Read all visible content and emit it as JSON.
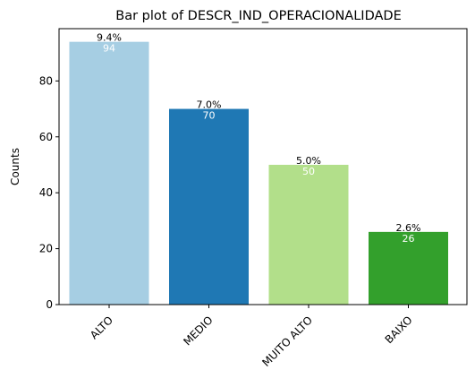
{
  "chart_data": {
    "type": "bar",
    "title": "Bar plot of DESCR_IND_OPERACIONALIDADE",
    "xlabel": "",
    "ylabel": "Counts",
    "categories": [
      "ALTO",
      "MEDIO",
      "MUITO ALTO",
      "BAIXO"
    ],
    "values": [
      94,
      70,
      50,
      26
    ],
    "percent_labels": [
      "9.4%",
      "7.0%",
      "5.0%",
      "2.6%"
    ],
    "value_labels": [
      "94",
      "70",
      "50",
      "26"
    ],
    "colors": [
      "#a6cee3",
      "#1f78b4",
      "#b2df8a",
      "#33a02c"
    ],
    "yticks": [
      0,
      20,
      40,
      60,
      80
    ],
    "ylim": [
      0,
      98.7
    ],
    "grid": false,
    "x_tick_rotation_deg": 45
  }
}
